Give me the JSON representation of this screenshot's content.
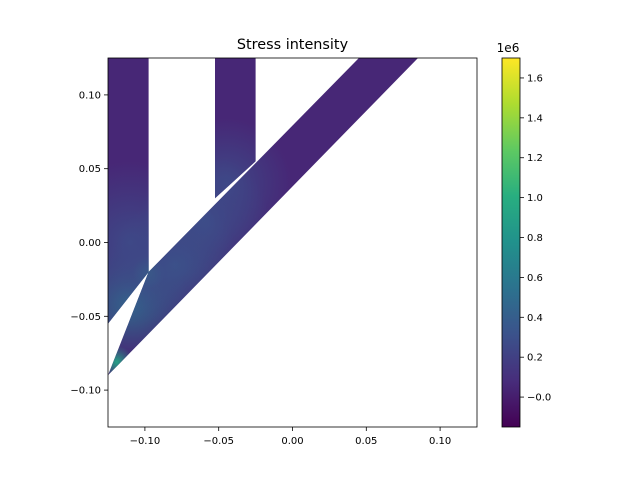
{
  "chart_data": {
    "type": "heatmap",
    "title": "Stress intensity",
    "xlabel": "",
    "ylabel": "",
    "xlim": [
      -0.125,
      0.125
    ],
    "ylim": [
      -0.125,
      0.125
    ],
    "x_ticks": [
      -0.1,
      -0.05,
      0.0,
      0.05,
      0.1
    ],
    "x_tick_labels": [
      "−0.10",
      "−0.05",
      "0.00",
      "0.05",
      "0.10"
    ],
    "y_ticks": [
      0.1,
      0.05,
      0.0,
      -0.05,
      -0.1
    ],
    "y_tick_labels": [
      "0.10",
      "0.05",
      "0.00",
      "−0.05",
      "−0.10"
    ],
    "colormap": "viridis",
    "colorbar": {
      "range": [
        -0.15,
        1.7
      ],
      "ticks": [
        -0.0,
        0.2,
        0.4,
        0.6,
        0.8,
        1.0,
        1.2,
        1.4,
        1.6
      ],
      "tick_labels": [
        "−0.0",
        "0.2",
        "0.4",
        "0.6",
        "0.8",
        "1.0",
        "1.2",
        "1.4",
        "1.6"
      ],
      "multiplier_label": "1e6"
    },
    "grid": false,
    "shapes": {
      "left_leg": [
        [
          -0.125,
          0.125
        ],
        [
          -0.0975,
          0.125
        ],
        [
          -0.0975,
          -0.02
        ],
        [
          -0.125,
          -0.055
        ]
      ],
      "middle_leg": [
        [
          -0.0525,
          0.125
        ],
        [
          -0.025,
          0.125
        ],
        [
          -0.025,
          0.055
        ],
        [
          -0.0525,
          0.03
        ]
      ],
      "diagonal_band": [
        [
          -0.125,
          -0.09
        ],
        [
          0.085,
          0.125
        ],
        [
          0.045,
          0.125
        ],
        [
          -0.0975,
          -0.02
        ]
      ]
    },
    "base_value": 0.05,
    "hotspots": [
      {
        "x": -0.0975,
        "y": -0.02,
        "value": 0.9,
        "spread": 0.005
      },
      {
        "x": -0.119,
        "y": -0.081,
        "value": 0.9,
        "spread": 0.005
      },
      {
        "x": -0.11,
        "y": -0.04,
        "value": 0.5,
        "spread": 0.018
      },
      {
        "x": -0.08,
        "y": -0.015,
        "value": 0.35,
        "spread": 0.02
      },
      {
        "x": -0.06,
        "y": 0.015,
        "value": 0.3,
        "spread": 0.02
      },
      {
        "x": -0.045,
        "y": 0.04,
        "value": 0.25,
        "spread": 0.02
      },
      {
        "x": -0.11,
        "y": 0.0,
        "value": 0.25,
        "spread": 0.025
      }
    ]
  }
}
